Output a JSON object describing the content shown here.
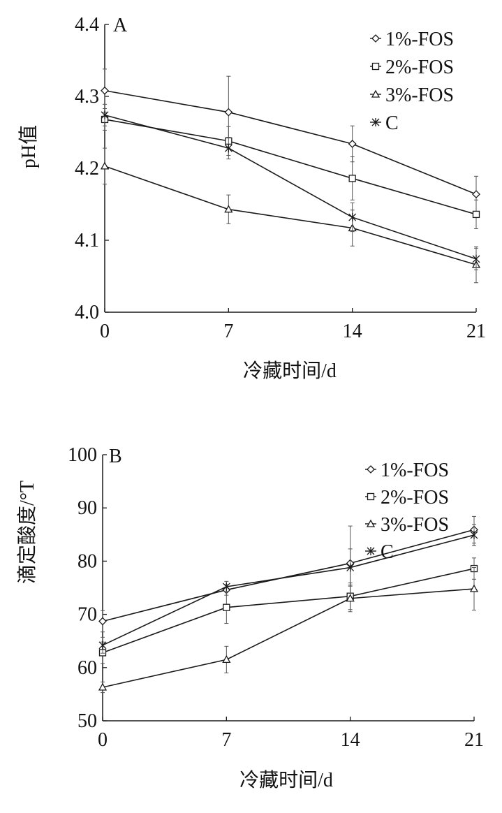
{
  "chart_data": [
    {
      "type": "line",
      "panel_label": "A",
      "xlabel": "冷藏时间/d",
      "ylabel": "pH值",
      "x": [
        0,
        7,
        14,
        21
      ],
      "x_ticks": [
        "0",
        "7",
        "14",
        "21"
      ],
      "xlim": [
        0,
        21
      ],
      "ylim": [
        4.0,
        4.4
      ],
      "y_ticks": [
        "4.0",
        "4.1",
        "4.2",
        "4.3",
        "4.4"
      ],
      "legend_position": "top-right",
      "grid": false,
      "series": [
        {
          "name": "1%-FOS",
          "marker": "diamond",
          "values": [
            4.308,
            4.278,
            4.234,
            4.164
          ],
          "errors": [
            0.03,
            0.05,
            0.025,
            0.025
          ]
        },
        {
          "name": "2%-FOS",
          "marker": "square",
          "values": [
            4.268,
            4.238,
            4.186,
            4.136
          ],
          "errors": [
            0.015,
            0.02,
            0.03,
            0.02
          ]
        },
        {
          "name": "3%-FOS",
          "marker": "triangle",
          "values": [
            4.203,
            4.143,
            4.117,
            4.066
          ],
          "errors": [
            0.025,
            0.02,
            0.025,
            0.025
          ]
        },
        {
          "name": "C",
          "marker": "star",
          "values": [
            4.274,
            4.228,
            4.132,
            4.074
          ],
          "errors": [
            0.015,
            0.015,
            0.02,
            0.015
          ]
        }
      ]
    },
    {
      "type": "line",
      "panel_label": "B",
      "xlabel": "冷藏时间/d",
      "ylabel": "滴定酸度/°T",
      "x": [
        0,
        7,
        14,
        21
      ],
      "x_ticks": [
        "0",
        "7",
        "14",
        "21"
      ],
      "xlim": [
        0,
        21
      ],
      "ylim": [
        50,
        100
      ],
      "y_ticks": [
        "50",
        "60",
        "70",
        "80",
        "90",
        "100"
      ],
      "legend_position": "top-right",
      "grid": false,
      "series": [
        {
          "name": "1%-FOS",
          "marker": "diamond",
          "values": [
            68.7,
            74.6,
            79.6,
            85.9
          ],
          "errors": [
            2.0,
            1.0,
            7.0,
            2.5
          ]
        },
        {
          "name": "2%-FOS",
          "marker": "square",
          "values": [
            62.8,
            71.3,
            73.4,
            78.6
          ],
          "errors": [
            2.0,
            3.0,
            2.5,
            2.0
          ]
        },
        {
          "name": "3%-FOS",
          "marker": "triangle",
          "values": [
            56.3,
            61.5,
            73.0,
            74.8
          ],
          "errors": [
            1.0,
            2.5,
            2.5,
            4.0
          ]
        },
        {
          "name": "C",
          "marker": "star",
          "values": [
            64.2,
            75.2,
            78.8,
            84.9
          ],
          "errors": [
            1.5,
            1.0,
            3.5,
            2.0
          ]
        }
      ]
    }
  ]
}
